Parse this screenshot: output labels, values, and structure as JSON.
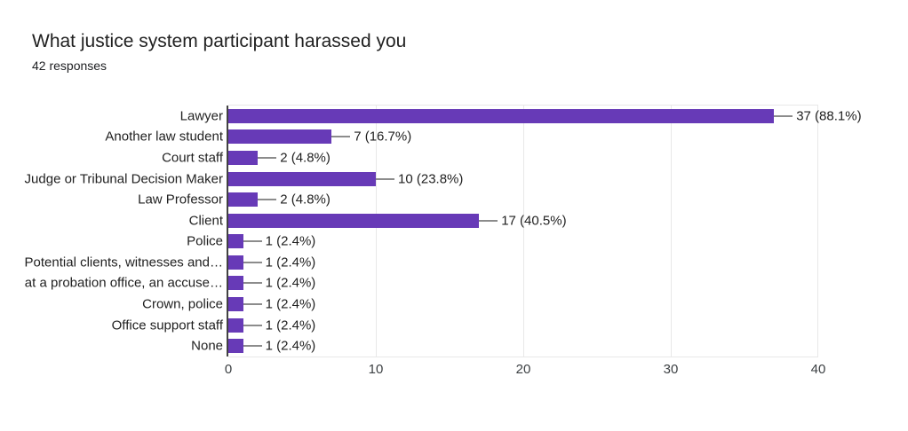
{
  "header": {
    "title": "What justice system participant harassed you",
    "subtitle": "42 responses"
  },
  "chart_data": {
    "type": "bar",
    "orientation": "horizontal",
    "title": "What justice system participant harassed you",
    "subtitle": "42 responses",
    "categories": [
      "Lawyer",
      "Another law student",
      "Court staff",
      "Judge or Tribunal Decision Maker",
      "Law Professor",
      "Client",
      "Police",
      "Potential clients, witnesses and…",
      "at a probation office, an accuse…",
      "Crown, police",
      "Office support staff",
      "None"
    ],
    "values": [
      37,
      7,
      2,
      10,
      2,
      17,
      1,
      1,
      1,
      1,
      1,
      1
    ],
    "value_labels": [
      "37 (88.1%)",
      "7 (16.7%)",
      "2 (4.8%)",
      "10 (23.8%)",
      "2 (4.8%)",
      "17 (40.5%)",
      "1 (2.4%)",
      "1 (2.4%)",
      "1 (2.4%)",
      "1 (2.4%)",
      "1 (2.4%)",
      "1 (2.4%)"
    ],
    "xlim": [
      0,
      40
    ],
    "x_ticks": [
      "0",
      "10",
      "20",
      "30",
      "40"
    ],
    "grid": true,
    "legend": "none",
    "colors": {
      "bar": "#673ab7",
      "leader_line": "#8c8c8c",
      "axis_line": "#424242",
      "gridline": "#e8e8e8",
      "title_text": "#212121",
      "label_text": "#1f1f1f"
    }
  }
}
